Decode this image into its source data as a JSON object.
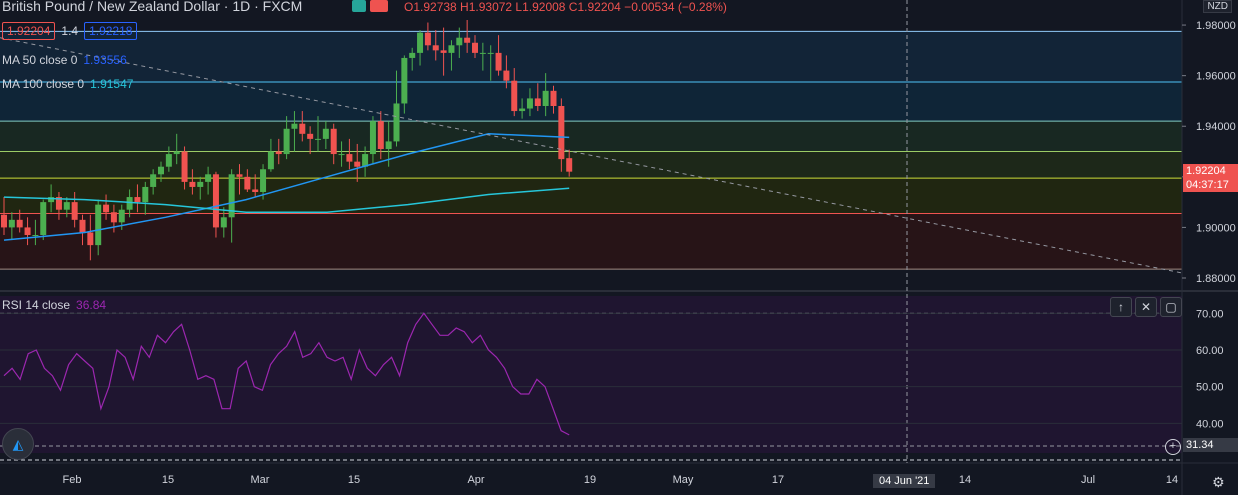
{
  "header": {
    "title": "British Pound / New Zealand Dollar · 1D · FXCM",
    "ohlc": "O1.92738  H1.93072  L1.92008  C1.92204  −0.00534 (−0.28%)",
    "bid": "1.92204",
    "spread": "1.4",
    "ask": "1.92218"
  },
  "indicators": {
    "ma50_label": "MA 50 close 0",
    "ma50_value": "1.93556",
    "ma100_label": "MA 100 close 0",
    "ma100_value": "1.91547",
    "rsi_label": "RSI 14 close",
    "rsi_value": "36.84"
  },
  "price_axis": {
    "currency": "NZD",
    "current_price": "1.92204",
    "countdown": "04:37:17",
    "ticks": [
      "1.98000",
      "1.96000",
      "1.94000",
      "1.92000",
      "1.90000",
      "1.88000"
    ]
  },
  "rsi_axis": {
    "ticks": [
      "70.00",
      "60.00",
      "50.00",
      "40.00"
    ],
    "crosshair_value": "31.34"
  },
  "time_axis": {
    "labels": [
      "Feb",
      "15",
      "Mar",
      "15",
      "Apr",
      "19",
      "May",
      "17",
      "14",
      "Jul",
      "14"
    ],
    "crosshair_date": "04 Jun '21"
  },
  "colors": {
    "up": "#26a69a",
    "up_body": "#4caf50",
    "down": "#ef5350",
    "ma50": "#2196f3",
    "ma100": "#26c6da",
    "rsi_line": "#9c27b0",
    "background": "#131722"
  },
  "chart_data": {
    "type": "candlestick",
    "title": "British Pound / New Zealand Dollar · 1D · FXCM",
    "ylabel": "NZD",
    "ylim": [
      1.88,
      1.982
    ],
    "candles": [
      {
        "o": 1.905,
        "h": 1.912,
        "l": 1.897,
        "c": 1.9
      },
      {
        "o": 1.9,
        "h": 1.906,
        "l": 1.895,
        "c": 1.903
      },
      {
        "o": 1.903,
        "h": 1.907,
        "l": 1.898,
        "c": 1.9
      },
      {
        "o": 1.9,
        "h": 1.904,
        "l": 1.893,
        "c": 1.897
      },
      {
        "o": 1.897,
        "h": 1.903,
        "l": 1.893,
        "c": 1.897
      },
      {
        "o": 1.897,
        "h": 1.911,
        "l": 1.895,
        "c": 1.91
      },
      {
        "o": 1.91,
        "h": 1.917,
        "l": 1.906,
        "c": 1.912
      },
      {
        "o": 1.912,
        "h": 1.914,
        "l": 1.903,
        "c": 1.907
      },
      {
        "o": 1.907,
        "h": 1.912,
        "l": 1.904,
        "c": 1.91
      },
      {
        "o": 1.91,
        "h": 1.914,
        "l": 1.9,
        "c": 1.903
      },
      {
        "o": 1.903,
        "h": 1.905,
        "l": 1.893,
        "c": 1.898
      },
      {
        "o": 1.898,
        "h": 1.905,
        "l": 1.887,
        "c": 1.893
      },
      {
        "o": 1.893,
        "h": 1.911,
        "l": 1.889,
        "c": 1.909
      },
      {
        "o": 1.909,
        "h": 1.913,
        "l": 1.903,
        "c": 1.906
      },
      {
        "o": 1.906,
        "h": 1.909,
        "l": 1.898,
        "c": 1.902
      },
      {
        "o": 1.902,
        "h": 1.909,
        "l": 1.899,
        "c": 1.907
      },
      {
        "o": 1.907,
        "h": 1.915,
        "l": 1.904,
        "c": 1.912
      },
      {
        "o": 1.912,
        "h": 1.917,
        "l": 1.906,
        "c": 1.91
      },
      {
        "o": 1.91,
        "h": 1.918,
        "l": 1.905,
        "c": 1.916
      },
      {
        "o": 1.916,
        "h": 1.923,
        "l": 1.913,
        "c": 1.921
      },
      {
        "o": 1.921,
        "h": 1.926,
        "l": 1.918,
        "c": 1.924
      },
      {
        "o": 1.924,
        "h": 1.932,
        "l": 1.922,
        "c": 1.929
      },
      {
        "o": 1.929,
        "h": 1.937,
        "l": 1.925,
        "c": 1.93
      },
      {
        "o": 1.93,
        "h": 1.932,
        "l": 1.915,
        "c": 1.918
      },
      {
        "o": 1.918,
        "h": 1.923,
        "l": 1.913,
        "c": 1.916
      },
      {
        "o": 1.916,
        "h": 1.92,
        "l": 1.911,
        "c": 1.918
      },
      {
        "o": 1.918,
        "h": 1.924,
        "l": 1.913,
        "c": 1.921
      },
      {
        "o": 1.921,
        "h": 1.922,
        "l": 1.896,
        "c": 1.9
      },
      {
        "o": 1.9,
        "h": 1.908,
        "l": 1.896,
        "c": 1.904
      },
      {
        "o": 1.904,
        "h": 1.923,
        "l": 1.894,
        "c": 1.921
      },
      {
        "o": 1.921,
        "h": 1.925,
        "l": 1.913,
        "c": 1.92
      },
      {
        "o": 1.92,
        "h": 1.923,
        "l": 1.914,
        "c": 1.915
      },
      {
        "o": 1.915,
        "h": 1.921,
        "l": 1.912,
        "c": 1.914
      },
      {
        "o": 1.914,
        "h": 1.925,
        "l": 1.911,
        "c": 1.923
      },
      {
        "o": 1.923,
        "h": 1.935,
        "l": 1.922,
        "c": 1.93
      },
      {
        "o": 1.93,
        "h": 1.935,
        "l": 1.925,
        "c": 1.929
      },
      {
        "o": 1.929,
        "h": 1.944,
        "l": 1.927,
        "c": 1.939
      },
      {
        "o": 1.939,
        "h": 1.946,
        "l": 1.93,
        "c": 1.941
      },
      {
        "o": 1.941,
        "h": 1.946,
        "l": 1.934,
        "c": 1.937
      },
      {
        "o": 1.937,
        "h": 1.94,
        "l": 1.929,
        "c": 1.935
      },
      {
        "o": 1.935,
        "h": 1.944,
        "l": 1.93,
        "c": 1.935
      },
      {
        "o": 1.935,
        "h": 1.942,
        "l": 1.931,
        "c": 1.939
      },
      {
        "o": 1.939,
        "h": 1.941,
        "l": 1.925,
        "c": 1.929
      },
      {
        "o": 1.929,
        "h": 1.934,
        "l": 1.924,
        "c": 1.929
      },
      {
        "o": 1.929,
        "h": 1.935,
        "l": 1.923,
        "c": 1.926
      },
      {
        "o": 1.926,
        "h": 1.933,
        "l": 1.918,
        "c": 1.924
      },
      {
        "o": 1.924,
        "h": 1.932,
        "l": 1.92,
        "c": 1.929
      },
      {
        "o": 1.929,
        "h": 1.944,
        "l": 1.925,
        "c": 1.942
      },
      {
        "o": 1.942,
        "h": 1.946,
        "l": 1.927,
        "c": 1.931
      },
      {
        "o": 1.931,
        "h": 1.942,
        "l": 1.924,
        "c": 1.934
      },
      {
        "o": 1.934,
        "h": 1.962,
        "l": 1.932,
        "c": 1.949
      },
      {
        "o": 1.949,
        "h": 1.968,
        "l": 1.945,
        "c": 1.967
      },
      {
        "o": 1.967,
        "h": 1.971,
        "l": 1.962,
        "c": 1.969
      },
      {
        "o": 1.969,
        "h": 1.978,
        "l": 1.964,
        "c": 1.977
      },
      {
        "o": 1.977,
        "h": 1.981,
        "l": 1.97,
        "c": 1.972
      },
      {
        "o": 1.972,
        "h": 1.978,
        "l": 1.966,
        "c": 1.97
      },
      {
        "o": 1.97,
        "h": 1.979,
        "l": 1.96,
        "c": 1.969
      },
      {
        "o": 1.969,
        "h": 1.974,
        "l": 1.962,
        "c": 1.972
      },
      {
        "o": 1.972,
        "h": 1.979,
        "l": 1.967,
        "c": 1.975
      },
      {
        "o": 1.975,
        "h": 1.982,
        "l": 1.969,
        "c": 1.973
      },
      {
        "o": 1.973,
        "h": 1.976,
        "l": 1.967,
        "c": 1.969
      },
      {
        "o": 1.969,
        "h": 1.973,
        "l": 1.962,
        "c": 1.969
      },
      {
        "o": 1.969,
        "h": 1.972,
        "l": 1.958,
        "c": 1.969
      },
      {
        "o": 1.969,
        "h": 1.976,
        "l": 1.96,
        "c": 1.962
      },
      {
        "o": 1.962,
        "h": 1.968,
        "l": 1.955,
        "c": 1.958
      },
      {
        "o": 1.958,
        "h": 1.963,
        "l": 1.944,
        "c": 1.946
      },
      {
        "o": 1.946,
        "h": 1.951,
        "l": 1.943,
        "c": 1.947
      },
      {
        "o": 1.947,
        "h": 1.955,
        "l": 1.944,
        "c": 1.951
      },
      {
        "o": 1.951,
        "h": 1.957,
        "l": 1.946,
        "c": 1.948
      },
      {
        "o": 1.948,
        "h": 1.961,
        "l": 1.944,
        "c": 1.954
      },
      {
        "o": 1.954,
        "h": 1.956,
        "l": 1.945,
        "c": 1.948
      },
      {
        "o": 1.948,
        "h": 1.951,
        "l": 1.922,
        "c": 1.927
      },
      {
        "o": 1.92738,
        "h": 1.93072,
        "l": 1.92008,
        "c": 1.92204
      }
    ],
    "ma50": [
      1.895,
      1.898,
      1.904,
      1.911,
      1.92,
      1.929,
      1.937,
      1.9356
    ],
    "ma100": [
      1.912,
      1.911,
      1.909,
      1.906,
      1.906,
      1.909,
      1.913,
      1.9155
    ],
    "rsi": [
      53,
      55,
      52,
      59,
      60,
      55,
      53,
      49,
      56,
      59,
      57,
      55,
      44,
      50,
      60,
      58,
      52,
      61,
      58,
      64,
      62,
      65,
      67,
      60,
      52,
      53,
      52,
      44,
      44,
      55,
      57,
      50,
      49,
      56,
      59,
      61,
      65,
      58,
      59,
      62,
      58,
      57,
      58,
      52,
      60,
      55,
      53,
      56,
      58,
      53,
      62,
      67,
      70,
      67,
      64,
      64,
      66,
      65,
      62,
      64,
      60,
      58,
      55,
      50,
      48,
      48,
      52,
      50,
      44,
      38,
      36.84
    ],
    "rsi_ylim": [
      30,
      72
    ],
    "horizontal_levels": [
      1.9775,
      1.9575,
      1.942,
      1.93,
      1.9195,
      1.9055,
      1.8835
    ],
    "trendline": {
      "from": 1.975,
      "to": 1.882
    }
  }
}
